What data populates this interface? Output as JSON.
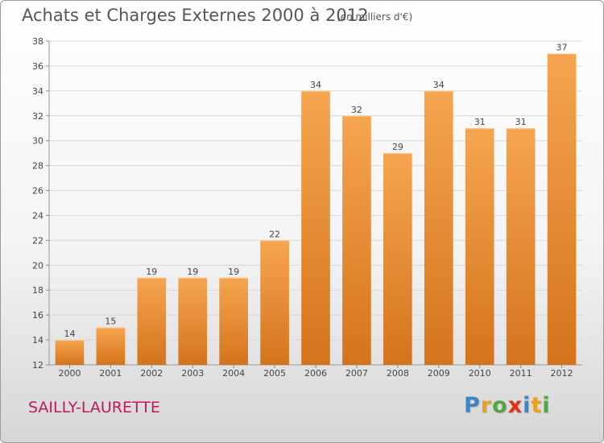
{
  "header": {
    "title": "Achats et Charges Externes 2000 à 2012",
    "unit": "(en milliers d'€)"
  },
  "footer": {
    "commune": "SAILLY-LAURETTE",
    "logo_letters": [
      {
        "char": "P",
        "color": "#3d86c6"
      },
      {
        "char": "r",
        "color": "#e8a21c"
      },
      {
        "char": "o",
        "color": "#4fa83d"
      },
      {
        "char": "x",
        "color": "#e0311b"
      },
      {
        "char": "i",
        "color": "#3d86c6"
      },
      {
        "char": "t",
        "color": "#e8a21c"
      },
      {
        "char": "i",
        "color": "#4fa83d"
      }
    ]
  },
  "chart_data": {
    "type": "bar",
    "title": "Achats et Charges Externes 2000 à 2012",
    "xlabel": "",
    "ylabel": "",
    "categories": [
      "2000",
      "2001",
      "2002",
      "2003",
      "2004",
      "2005",
      "2006",
      "2007",
      "2008",
      "2009",
      "2010",
      "2011",
      "2012"
    ],
    "values": [
      14,
      15,
      19,
      19,
      19,
      22,
      34,
      32,
      29,
      34,
      31,
      31,
      37
    ],
    "ylim": [
      12,
      38
    ],
    "yticks": [
      12,
      14,
      16,
      18,
      20,
      22,
      24,
      26,
      28,
      30,
      32,
      34,
      36,
      38
    ],
    "grid": true,
    "value_labels": true,
    "colors": {
      "bar_light": "#f6a550",
      "bar_dark": "#d4741c",
      "grid": "#d8d8d8",
      "axis_text": "#444444"
    }
  }
}
